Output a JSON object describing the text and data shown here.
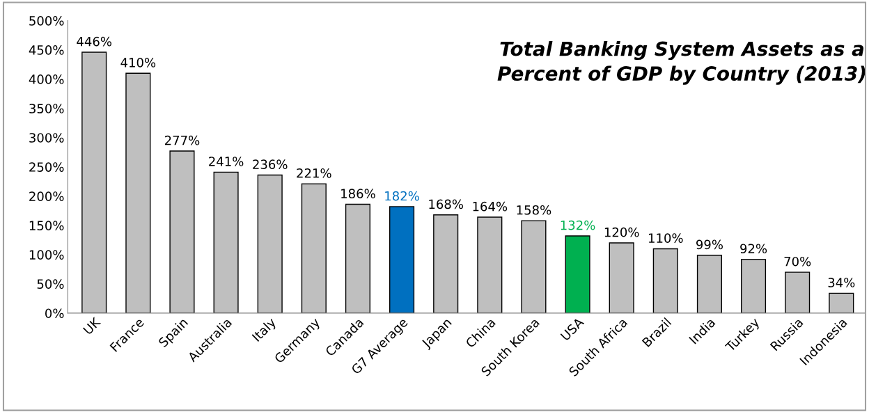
{
  "chart_data": {
    "type": "bar",
    "title": "Total Banking System Assets as a Percent of GDP by Country (2013)",
    "categories": [
      "UK",
      "France",
      "Spain",
      "Australia",
      "Italy",
      "Germany",
      "Canada",
      "G7 Average",
      "Japan",
      "China",
      "South Korea",
      "USA",
      "South Africa",
      "Brazil",
      "India",
      "Turkey",
      "Russia",
      "Indonesia"
    ],
    "values": [
      446,
      410,
      277,
      241,
      236,
      221,
      186,
      182,
      168,
      164,
      158,
      132,
      120,
      110,
      99,
      92,
      70,
      34
    ],
    "value_labels": [
      "446%",
      "410%",
      "277%",
      "241%",
      "236%",
      "221%",
      "186%",
      "182%",
      "168%",
      "164%",
      "158%",
      "132%",
      "120%",
      "110%",
      "99%",
      "92%",
      "70%",
      "34%"
    ],
    "colors": [
      "#bfbfbf",
      "#bfbfbf",
      "#bfbfbf",
      "#bfbfbf",
      "#bfbfbf",
      "#bfbfbf",
      "#bfbfbf",
      "#0070c0",
      "#bfbfbf",
      "#bfbfbf",
      "#bfbfbf",
      "#00b050",
      "#bfbfbf",
      "#bfbfbf",
      "#bfbfbf",
      "#bfbfbf",
      "#bfbfbf",
      "#bfbfbf"
    ],
    "ylim": [
      0,
      500
    ],
    "yticks": [
      {
        "value": 0,
        "label": "0%"
      },
      {
        "value": 50,
        "label": "50%"
      },
      {
        "value": 100,
        "label": "100%"
      },
      {
        "value": 150,
        "label": "150%"
      },
      {
        "value": 200,
        "label": "200%"
      },
      {
        "value": 250,
        "label": "250%"
      },
      {
        "value": 300,
        "label": "300%"
      },
      {
        "value": 350,
        "label": "350%"
      },
      {
        "value": 400,
        "label": "400%"
      },
      {
        "value": 450,
        "label": "450%"
      },
      {
        "value": 500,
        "label": "500%"
      }
    ],
    "grid": false,
    "legend": false
  }
}
